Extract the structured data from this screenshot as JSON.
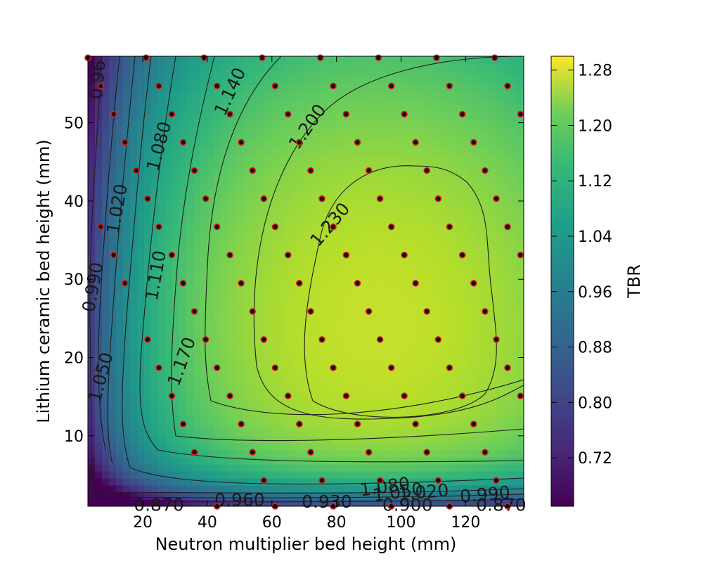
{
  "chart_data": {
    "type": "heatmap",
    "subtype": "contour",
    "colormap": "viridis",
    "xlabel": "Neutron multiplier bed height (mm)",
    "ylabel": "Lithium ceramic bed height (mm)",
    "colorbar_label": "TBR",
    "xlim": [
      3,
      138
    ],
    "ylim": [
      1,
      58.5
    ],
    "x_ticks": [
      "20",
      "40",
      "60",
      "80",
      "100",
      "120"
    ],
    "x_tick_values": [
      20,
      40,
      60,
      80,
      100,
      120
    ],
    "y_ticks": [
      "10",
      "20",
      "30",
      "40",
      "50"
    ],
    "y_tick_values": [
      10,
      20,
      30,
      40,
      50
    ],
    "colorbar_range": [
      0.65,
      1.3
    ],
    "colorbar_ticks": [
      "0.72",
      "0.80",
      "0.88",
      "0.96",
      "1.04",
      "1.12",
      "1.20",
      "1.28"
    ],
    "colorbar_tick_values": [
      0.72,
      0.8,
      0.88,
      0.96,
      1.04,
      1.12,
      1.2,
      1.28
    ],
    "surface_peak": {
      "x": 92,
      "y": 24,
      "value": 1.245
    },
    "contour_labels": [
      {
        "text": "0.96",
        "x": 6,
        "y": 55.5,
        "angle": -85
      },
      {
        "text": "1.020",
        "x": 12,
        "y": 39,
        "angle": -80
      },
      {
        "text": "0.990",
        "x": 4.5,
        "y": 29,
        "angle": -80
      },
      {
        "text": "1.050",
        "x": 7,
        "y": 17.5,
        "angle": -75
      },
      {
        "text": "1.080",
        "x": 25,
        "y": 47,
        "angle": -75
      },
      {
        "text": "1.110",
        "x": 24,
        "y": 30.5,
        "angle": -80
      },
      {
        "text": "1.140",
        "x": 47,
        "y": 54,
        "angle": -65
      },
      {
        "text": "1.170",
        "x": 32,
        "y": 19.5,
        "angle": -70
      },
      {
        "text": "1.200",
        "x": 71,
        "y": 49.5,
        "angle": -55
      },
      {
        "text": "1.230",
        "x": 78,
        "y": 37,
        "angle": -50
      },
      {
        "text": "0.870",
        "x": 25,
        "y": 1.2,
        "angle": 0
      },
      {
        "text": "0.960",
        "x": 50,
        "y": 1.8,
        "angle": 0
      },
      {
        "text": "0.930",
        "x": 77,
        "y": 1.6,
        "angle": 0
      },
      {
        "text": "1.080",
        "x": 95,
        "y": 3.5,
        "angle": -8
      },
      {
        "text": "1.050",
        "x": 99,
        "y": 2.8,
        "angle": -8
      },
      {
        "text": "1.020",
        "x": 107,
        "y": 2.8,
        "angle": -5
      },
      {
        "text": "0.900",
        "x": 102,
        "y": 1.2,
        "angle": 0
      },
      {
        "text": "0.990",
        "x": 126,
        "y": 2.5,
        "angle": -5
      },
      {
        "text": "0.870",
        "x": 131,
        "y": 1.2,
        "angle": 0
      }
    ],
    "sample_points": [
      [
        3,
        58.3
      ],
      [
        21,
        58.3
      ],
      [
        39,
        58.3
      ],
      [
        57,
        58.3
      ],
      [
        75,
        58.3
      ],
      [
        93,
        58.3
      ],
      [
        111,
        58.3
      ],
      [
        129,
        58.3
      ],
      [
        7,
        54.7
      ],
      [
        25,
        54.7
      ],
      [
        43,
        54.7
      ],
      [
        61,
        54.7
      ],
      [
        79,
        54.7
      ],
      [
        97,
        54.7
      ],
      [
        115,
        54.7
      ],
      [
        133,
        54.7
      ],
      [
        11,
        51.1
      ],
      [
        29,
        51.1
      ],
      [
        47,
        51.1
      ],
      [
        65,
        51.1
      ],
      [
        83,
        51.1
      ],
      [
        101,
        51.1
      ],
      [
        119,
        51.1
      ],
      [
        137,
        51.1
      ],
      [
        14.5,
        47.5
      ],
      [
        32.5,
        47.5
      ],
      [
        50.5,
        47.5
      ],
      [
        68.5,
        47.5
      ],
      [
        86.5,
        47.5
      ],
      [
        104.5,
        47.5
      ],
      [
        122.5,
        47.5
      ],
      [
        18,
        43.9
      ],
      [
        36,
        43.9
      ],
      [
        54,
        43.9
      ],
      [
        72,
        43.9
      ],
      [
        90,
        43.9
      ],
      [
        108,
        43.9
      ],
      [
        126,
        43.9
      ],
      [
        21.5,
        40.3
      ],
      [
        39.5,
        40.3
      ],
      [
        57.5,
        40.3
      ],
      [
        75.5,
        40.3
      ],
      [
        93.5,
        40.3
      ],
      [
        111.5,
        40.3
      ],
      [
        129.5,
        40.3
      ],
      [
        7,
        36.7
      ],
      [
        25,
        36.7
      ],
      [
        43,
        36.7
      ],
      [
        61,
        36.7
      ],
      [
        79,
        36.7
      ],
      [
        97,
        36.7
      ],
      [
        115,
        36.7
      ],
      [
        133,
        36.7
      ],
      [
        11,
        33.1
      ],
      [
        29,
        33.1
      ],
      [
        47,
        33.1
      ],
      [
        65,
        33.1
      ],
      [
        83,
        33.1
      ],
      [
        101,
        33.1
      ],
      [
        119,
        33.1
      ],
      [
        137,
        33.1
      ],
      [
        14.5,
        29.5
      ],
      [
        32.5,
        29.5
      ],
      [
        50.5,
        29.5
      ],
      [
        68.5,
        29.5
      ],
      [
        86.5,
        29.5
      ],
      [
        104.5,
        29.5
      ],
      [
        122.5,
        29.5
      ],
      [
        36,
        25.9
      ],
      [
        54,
        25.9
      ],
      [
        72,
        25.9
      ],
      [
        90,
        25.9
      ],
      [
        108,
        25.9
      ],
      [
        126,
        25.9
      ],
      [
        21.5,
        22.3
      ],
      [
        39.5,
        22.3
      ],
      [
        57.5,
        22.3
      ],
      [
        75.5,
        22.3
      ],
      [
        93.5,
        22.3
      ],
      [
        111.5,
        22.3
      ],
      [
        129.5,
        22.3
      ],
      [
        25,
        18.7
      ],
      [
        43,
        18.7
      ],
      [
        61,
        18.7
      ],
      [
        79,
        18.7
      ],
      [
        97,
        18.7
      ],
      [
        115,
        18.7
      ],
      [
        133,
        18.7
      ],
      [
        29,
        15.1
      ],
      [
        47,
        15.1
      ],
      [
        65,
        15.1
      ],
      [
        83,
        15.1
      ],
      [
        101,
        15.1
      ],
      [
        119,
        15.1
      ],
      [
        137,
        15.1
      ],
      [
        32.5,
        11.5
      ],
      [
        50.5,
        11.5
      ],
      [
        68.5,
        11.5
      ],
      [
        86.5,
        11.5
      ],
      [
        104.5,
        11.5
      ],
      [
        122.5,
        11.5
      ],
      [
        36,
        7.9
      ],
      [
        54,
        7.9
      ],
      [
        72,
        7.9
      ],
      [
        90,
        7.9
      ],
      [
        108,
        7.9
      ],
      [
        126,
        7.9
      ],
      [
        57.5,
        4.3
      ],
      [
        75.5,
        4.3
      ],
      [
        93.5,
        4.3
      ],
      [
        111.5,
        4.3
      ],
      [
        129.5,
        4.3
      ],
      [
        43,
        1.0
      ],
      [
        61,
        1.0
      ],
      [
        79,
        1.0
      ],
      [
        97,
        1.0
      ],
      [
        115,
        1.0
      ],
      [
        133,
        1.0
      ]
    ]
  }
}
